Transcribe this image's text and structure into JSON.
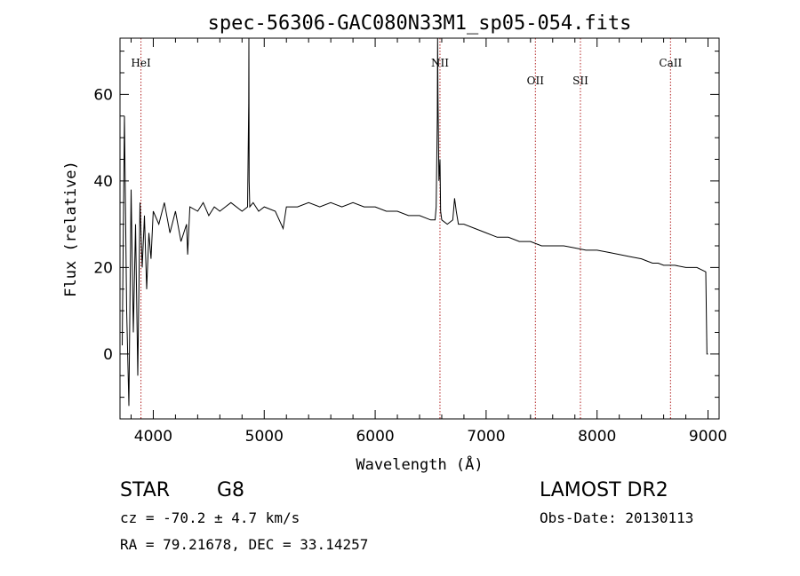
{
  "chart_data": {
    "type": "line",
    "title": "spec-56306-GAC080N33M1_sp05-054.fits",
    "xlabel": "Wavelength (Å)",
    "ylabel": "Flux (relative)",
    "xlim": [
      3700,
      9100
    ],
    "ylim": [
      -15,
      73
    ],
    "x_ticks": [
      4000,
      5000,
      6000,
      7000,
      8000,
      9000
    ],
    "y_ticks": [
      0,
      20,
      40,
      60
    ],
    "x_minor_step": 200,
    "y_minor_step": 5,
    "grid": false,
    "series": [
      {
        "x": [
          3720,
          3740,
          3760,
          3780,
          3800,
          3820,
          3840,
          3860,
          3880,
          3900,
          3920,
          3940,
          3960,
          3980,
          4000,
          4050,
          4100,
          4150,
          4200,
          4250,
          4300,
          4310,
          4330,
          4400,
          4450,
          4500,
          4550,
          4600,
          4700,
          4800,
          4850,
          4860,
          4862,
          4864,
          4870,
          4900,
          4950,
          5000,
          5100,
          5170,
          5200,
          5300,
          5400,
          5500,
          5600,
          5700,
          5800,
          5900,
          6000,
          6100,
          6200,
          6300,
          6400,
          6500,
          6540,
          6550,
          6560,
          6563,
          6566,
          6575,
          6584,
          6590,
          6600,
          6650,
          6700,
          6716,
          6731,
          6750,
          6800,
          6900,
          7000,
          7100,
          7200,
          7300,
          7400,
          7500,
          7600,
          7700,
          7800,
          7900,
          8000,
          8100,
          8200,
          8300,
          8400,
          8450,
          8500,
          8550,
          8600,
          8650,
          8700,
          8800,
          8900,
          8980,
          8990,
          9000
        ],
        "y": [
          2,
          55,
          10,
          -12,
          38,
          5,
          30,
          -5,
          35,
          20,
          32,
          15,
          28,
          22,
          33,
          30,
          35,
          28,
          33,
          26,
          30,
          23,
          34,
          33,
          35,
          32,
          34,
          33,
          35,
          33,
          34,
          58,
          73,
          40,
          34,
          35,
          33,
          34,
          33,
          29,
          34,
          34,
          35,
          34,
          35,
          34,
          35,
          34,
          34,
          33,
          33,
          32,
          32,
          31,
          31,
          34,
          55,
          73,
          60,
          40,
          45,
          33,
          31,
          30,
          31,
          36,
          33,
          30,
          30,
          29,
          28,
          27,
          27,
          26,
          26,
          25,
          25,
          25,
          24.5,
          24,
          24,
          23.5,
          23,
          22.5,
          22,
          21.5,
          21,
          21,
          20.5,
          20.5,
          20.5,
          20,
          20,
          19,
          0,
          0
        ]
      }
    ],
    "line_markers": [
      {
        "label": "HeI",
        "x": 3889
      },
      {
        "label": "NII",
        "x": 6584
      },
      {
        "label": "OII",
        "x": 7444
      },
      {
        "label": "SII",
        "x": 7850
      },
      {
        "label": "CaII",
        "x": 8662
      }
    ]
  },
  "info": {
    "object_class": "STAR",
    "subclass": "G8",
    "survey": "LAMOST DR2",
    "redshift_line": "cz = -70.2 ± 4.7 km/s",
    "obs_date": "Obs-Date: 20130113",
    "coords": "RA =  79.21678, DEC =  33.14257"
  }
}
